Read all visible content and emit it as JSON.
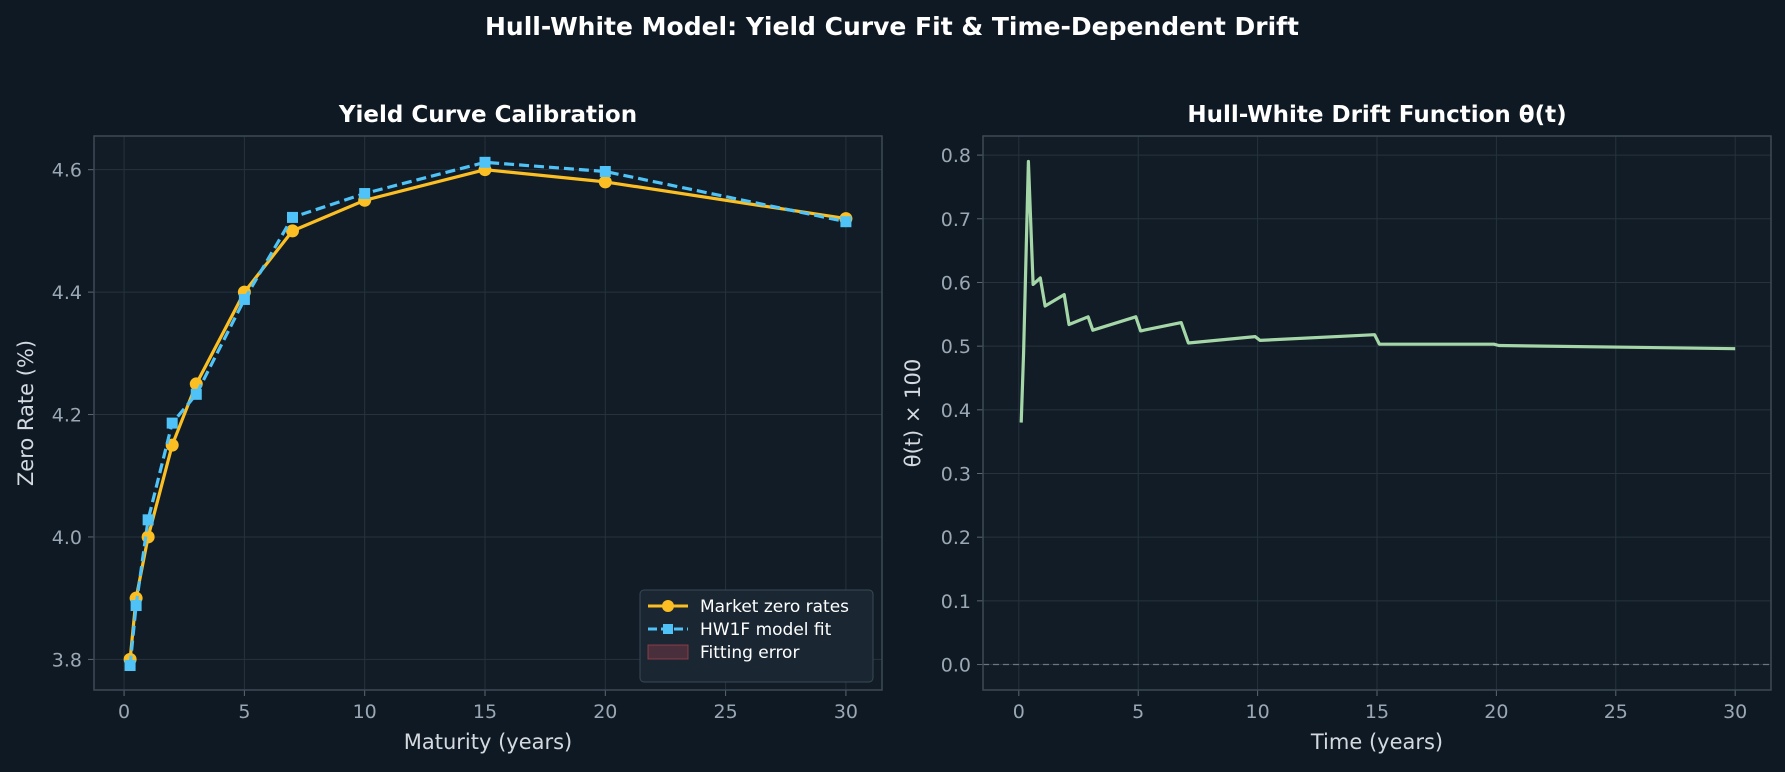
{
  "suptitle": "Hull-White Model: Yield Curve Fit & Time-Dependent Drift",
  "chart_data": [
    {
      "type": "line",
      "title": "Yield Curve Calibration",
      "xlabel": "Maturity (years)",
      "ylabel": "Zero Rate (%)",
      "xlim": [
        -1.25,
        31.5
      ],
      "ylim": [
        3.75,
        4.655
      ],
      "xticks": [
        "0",
        "5",
        "10",
        "15",
        "20",
        "25",
        "30"
      ],
      "yticks": [
        "3.8",
        "4.0",
        "4.2",
        "4.4",
        "4.6"
      ],
      "grid": true,
      "legend_position": "lower-right",
      "x": [
        0.25,
        0.5,
        1,
        2,
        3,
        5,
        7,
        10,
        15,
        20,
        30
      ],
      "series": [
        {
          "name": "Market zero rates",
          "color": "#fbbf24",
          "marker": "circle",
          "linestyle": "solid",
          "values": [
            3.8,
            3.9,
            4.0,
            4.15,
            4.25,
            4.4,
            4.5,
            4.55,
            4.6,
            4.58,
            4.52
          ]
        },
        {
          "name": "HW1F model fit",
          "color": "#4fc3f7",
          "marker": "square",
          "linestyle": "dashed",
          "values": [
            3.79,
            3.888,
            4.028,
            4.186,
            4.233,
            4.388,
            4.522,
            4.561,
            4.612,
            4.597,
            4.515
          ]
        }
      ],
      "legend": [
        {
          "label": "Market zero rates",
          "color": "#fbbf24",
          "kind": "line-circle"
        },
        {
          "label": "HW1F model fit",
          "color": "#4fc3f7",
          "kind": "line-square"
        },
        {
          "label": "Fitting error",
          "color": "#a0404a",
          "kind": "patch"
        }
      ]
    },
    {
      "type": "line",
      "title": "Hull-White Drift Function θ(t)",
      "xlabel": "Time (years)",
      "ylabel": "θ(t) × 100",
      "xlim": [
        -1.5,
        31.5
      ],
      "ylim": [
        -0.04,
        0.83
      ],
      "xticks": [
        "0",
        "5",
        "10",
        "15",
        "20",
        "25",
        "30"
      ],
      "yticks": [
        "0.0",
        "0.1",
        "0.2",
        "0.3",
        "0.4",
        "0.5",
        "0.6",
        "0.7",
        "0.8"
      ],
      "grid": true,
      "reference_line": 0,
      "series": [
        {
          "name": "",
          "color": "#a5d6a7",
          "x": [
            0.1,
            0.2,
            0.4,
            0.6,
            0.9,
            1.1,
            1.9,
            2.1,
            2.9,
            3.1,
            4.9,
            5.1,
            6.8,
            7.1,
            9.9,
            10.1,
            14.9,
            15.1,
            19.9,
            20.1,
            30
          ],
          "y": [
            0.38,
            0.49,
            0.79,
            0.597,
            0.607,
            0.563,
            0.581,
            0.534,
            0.546,
            0.525,
            0.546,
            0.524,
            0.537,
            0.505,
            0.515,
            0.509,
            0.518,
            0.503,
            0.503,
            0.501,
            0.496
          ]
        }
      ]
    }
  ]
}
